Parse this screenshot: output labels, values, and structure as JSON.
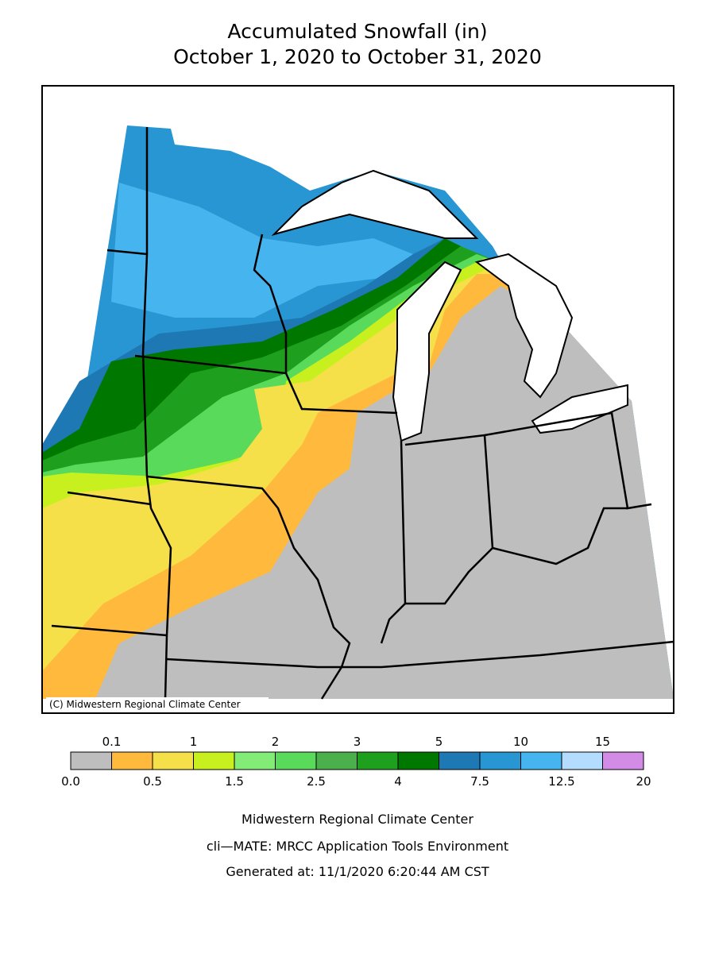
{
  "title": [
    "Accumulated Snowfall (in)",
    "October 1, 2020 to October 31, 2020"
  ],
  "copyright": "(C) Midwestern Regional Climate Center",
  "legend": {
    "bounds": [
      {
        "value": 0,
        "label": "0.0"
      },
      0.1,
      0.5,
      1,
      1.5,
      2,
      2.5,
      3,
      4,
      5,
      7.5,
      10,
      12.5,
      15,
      20
    ],
    "colors": [
      "#bebebe",
      "#ffb93c",
      "#f5e04a",
      "#c8f01e",
      "#82ec76",
      "#5ada5a",
      "#4bb04b",
      "#1ea01e",
      "#007800",
      "#1e78b4",
      "#2896d2",
      "#46b4ee",
      "#b4dcff",
      "#d28ce6"
    ]
  },
  "footer": [
    "Midwestern Regional Climate Center",
    "cli—MATE: MRCC Application Tools Environment",
    "Generated at: 11/1/2020 6:20:44 AM CST"
  ]
}
